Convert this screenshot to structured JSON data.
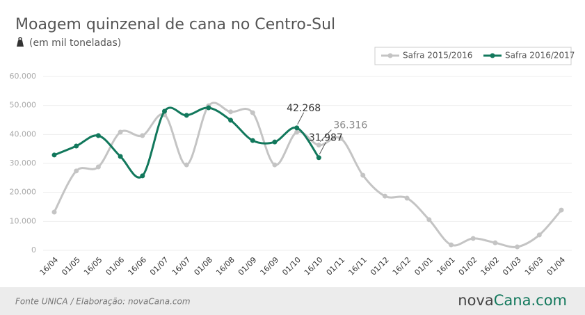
{
  "chart_data": {
    "type": "line",
    "title": "Moagem quinzenal de cana no Centro-Sul",
    "subtitle": "(em mil toneladas)",
    "source": "Fonte UNICA / Elaboração: novaCana.com",
    "logo": [
      "nova",
      "Cana",
      ".com"
    ],
    "categories": [
      "16/04",
      "01/05",
      "16/05",
      "01/06",
      "16/06",
      "01/07",
      "16/07",
      "01/08",
      "16/08",
      "01/09",
      "16/09",
      "01/10",
      "16/10",
      "01/11",
      "16/11",
      "01/12",
      "16/12",
      "01/01",
      "16/01",
      "01/02",
      "16/02",
      "01/03",
      "16/03",
      "01/04"
    ],
    "series": [
      {
        "name": "Safra 2015/2016",
        "color": "#c4c4c4",
        "values": [
          13.2,
          27.4,
          28.8,
          40.8,
          39.6,
          46.8,
          29.5,
          49.9,
          47.8,
          47.5,
          29.5,
          40.8,
          36.316,
          38.6,
          25.9,
          18.7,
          18.0,
          10.6,
          1.9,
          4.1,
          2.6,
          1.2,
          5.3,
          13.9
        ],
        "value_labels": [
          null,
          null,
          null,
          null,
          null,
          null,
          null,
          null,
          null,
          null,
          null,
          null,
          "36.316",
          null,
          null,
          null,
          null,
          null,
          null,
          null,
          null,
          null,
          null,
          null
        ]
      },
      {
        "name": "Safra 2016/2017",
        "color": "#12785c",
        "values": [
          32.9,
          36.0,
          39.6,
          32.4,
          25.7,
          48.0,
          46.6,
          49.2,
          44.9,
          37.9,
          37.4,
          42.268,
          31.987,
          null,
          null,
          null,
          null,
          null,
          null,
          null,
          null,
          null,
          null,
          null
        ],
        "value_labels": [
          null,
          null,
          null,
          null,
          null,
          null,
          null,
          null,
          null,
          null,
          null,
          "42.268",
          "31.987",
          null,
          null,
          null,
          null,
          null,
          null,
          null,
          null,
          null,
          null,
          null
        ]
      }
    ],
    "ylim": [
      0,
      60
    ],
    "yticks": [
      0,
      {
        "value": 10,
        "label": "10.000"
      },
      {
        "value": 20,
        "label": "20.000"
      },
      {
        "value": 30,
        "label": "30.000"
      },
      {
        "value": 40,
        "label": "40.000"
      },
      {
        "value": 50,
        "label": "50.000"
      },
      {
        "value": 60,
        "label": "60.000"
      }
    ],
    "grid": true,
    "legend": "top-right"
  }
}
